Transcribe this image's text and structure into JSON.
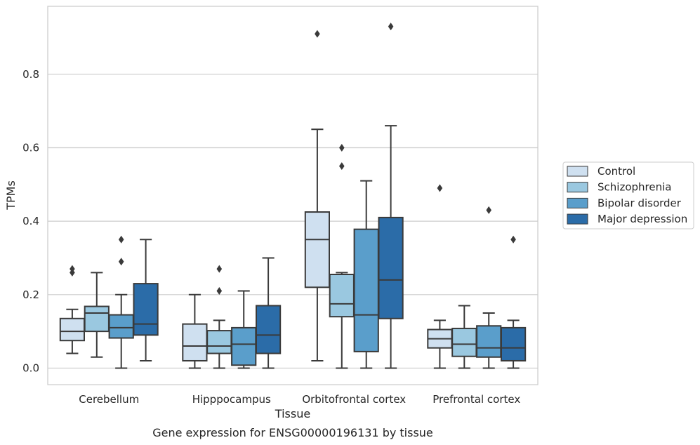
{
  "chart_data": {
    "type": "box",
    "title": "",
    "caption": "Gene expression for ENSG00000196131 by tissue",
    "xlabel": "Tissue",
    "ylabel": "TPMs",
    "ylim": [
      -0.045,
      0.985
    ],
    "yticks": [
      0.0,
      0.2,
      0.4,
      0.6,
      0.8
    ],
    "ytick_labels": [
      "0.0",
      "0.2",
      "0.4",
      "0.6",
      "0.8"
    ],
    "grid": "horizontal",
    "legend_position": "right",
    "categories": [
      "Cerebellum",
      "Hipppocampus",
      "Orbitofrontal cortex",
      "Prefrontal cortex"
    ],
    "series": [
      {
        "name": "Control",
        "color": "#cfe0f0",
        "boxes": [
          {
            "whislo": 0.04,
            "q1": 0.075,
            "med": 0.1,
            "q3": 0.135,
            "whishi": 0.16,
            "fliers": [
              0.26,
              0.27
            ]
          },
          {
            "whislo": 0.0,
            "q1": 0.02,
            "med": 0.06,
            "q3": 0.12,
            "whishi": 0.2,
            "fliers": []
          },
          {
            "whislo": 0.02,
            "q1": 0.22,
            "med": 0.35,
            "q3": 0.425,
            "whishi": 0.65,
            "fliers": [
              0.91
            ]
          },
          {
            "whislo": 0.0,
            "q1": 0.055,
            "med": 0.08,
            "q3": 0.105,
            "whishi": 0.13,
            "fliers": [
              0.49
            ]
          }
        ]
      },
      {
        "name": "Schizophrenia",
        "color": "#9ac8e0",
        "boxes": [
          {
            "whislo": 0.03,
            "q1": 0.1,
            "med": 0.15,
            "q3": 0.168,
            "whishi": 0.26,
            "fliers": []
          },
          {
            "whislo": 0.0,
            "q1": 0.04,
            "med": 0.06,
            "q3": 0.102,
            "whishi": 0.13,
            "fliers": [
              0.21,
              0.27
            ]
          },
          {
            "whislo": 0.0,
            "q1": 0.14,
            "med": 0.175,
            "q3": 0.255,
            "whishi": 0.26,
            "fliers": [
              0.55,
              0.6
            ]
          },
          {
            "whislo": 0.0,
            "q1": 0.032,
            "med": 0.065,
            "q3": 0.108,
            "whishi": 0.17,
            "fliers": []
          }
        ]
      },
      {
        "name": "Bipolar disorder",
        "color": "#5a9ecb",
        "boxes": [
          {
            "whislo": 0.0,
            "q1": 0.082,
            "med": 0.11,
            "q3": 0.145,
            "whishi": 0.2,
            "fliers": [
              0.29,
              0.35
            ]
          },
          {
            "whislo": 0.0,
            "q1": 0.008,
            "med": 0.065,
            "q3": 0.11,
            "whishi": 0.21,
            "fliers": []
          },
          {
            "whislo": 0.0,
            "q1": 0.045,
            "med": 0.145,
            "q3": 0.378,
            "whishi": 0.51,
            "fliers": []
          },
          {
            "whislo": 0.0,
            "q1": 0.03,
            "med": 0.055,
            "q3": 0.115,
            "whishi": 0.15,
            "fliers": [
              0.43
            ]
          }
        ]
      },
      {
        "name": "Major depression",
        "color": "#2b6ca8",
        "boxes": [
          {
            "whislo": 0.02,
            "q1": 0.09,
            "med": 0.12,
            "q3": 0.23,
            "whishi": 0.35,
            "fliers": []
          },
          {
            "whislo": 0.0,
            "q1": 0.04,
            "med": 0.09,
            "q3": 0.17,
            "whishi": 0.3,
            "fliers": []
          },
          {
            "whislo": 0.0,
            "q1": 0.135,
            "med": 0.24,
            "q3": 0.41,
            "whishi": 0.66,
            "fliers": [
              0.93
            ]
          },
          {
            "whislo": 0.0,
            "q1": 0.02,
            "med": 0.055,
            "q3": 0.11,
            "whishi": 0.13,
            "fliers": [
              0.35
            ]
          }
        ]
      }
    ]
  }
}
